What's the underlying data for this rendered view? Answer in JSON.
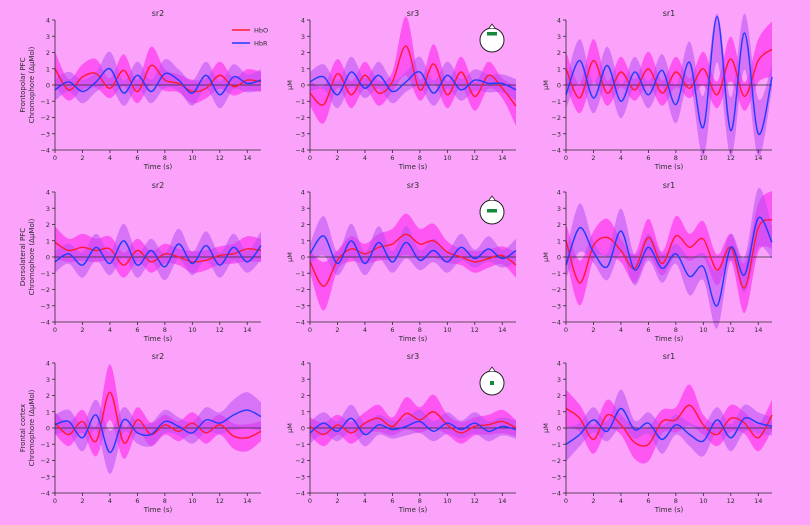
{
  "colors": {
    "background": "#fba3fb",
    "hbo": "#ff1a33",
    "hbr": "#1f3cff",
    "band_hbo": "#ff3cf0",
    "band_hbr": "#b84cf2",
    "axis": "#2b2b2b",
    "headmap": "#138a3a"
  },
  "legend": {
    "placement": "upper-right of top-left panel",
    "items": [
      "HbO",
      "HbR"
    ]
  },
  "headmap_icon": "head-montage-icon",
  "row_labels": [
    [
      "Frontopolar PFC",
      "Chromophore (ΔμMol)"
    ],
    [
      "Dorsolateral PFC",
      "Chromophore (ΔμMol)"
    ],
    [
      "Frontal cortex",
      "Chromophore (ΔμMol)"
    ]
  ],
  "xlabel": "Time (s)",
  "ylabel_right": "μM",
  "xticks": [
    0,
    2,
    4,
    6,
    8,
    10,
    12,
    14
  ],
  "yticks": [
    -4,
    -3,
    -2,
    -1,
    0,
    1,
    2,
    3,
    4
  ],
  "chart_data": [
    {
      "type": "line",
      "title": "sr2",
      "x": [
        0,
        1,
        2,
        3,
        4,
        5,
        6,
        7,
        8,
        9,
        10,
        11,
        12,
        13,
        14,
        15
      ],
      "series": [
        {
          "name": "HbO",
          "values": [
            1,
            -0.3,
            0.5,
            0.7,
            -0.2,
            0.9,
            -0.4,
            1.2,
            0.3,
            0.1,
            -0.4,
            -0.2,
            0.6,
            -0.1,
            0.3,
            0.2
          ]
        },
        {
          "name": "HbR",
          "values": [
            -0.3,
            0.2,
            -0.4,
            0.2,
            1,
            -0.5,
            0.6,
            -0.4,
            0.7,
            0.3,
            -0.5,
            0.6,
            -0.6,
            0.5,
            0.1,
            0.3
          ]
        }
      ],
      "xlim": [
        0,
        15
      ],
      "ylim": [
        -4,
        4
      ]
    },
    {
      "type": "line",
      "title": "sr3",
      "x": [
        0,
        1,
        2,
        3,
        4,
        5,
        6,
        7,
        8,
        9,
        10,
        11,
        12,
        13,
        14,
        15
      ],
      "series": [
        {
          "name": "HbO",
          "values": [
            -0.5,
            -1.2,
            0.7,
            -0.6,
            0.6,
            -0.5,
            0.2,
            2.4,
            -0.3,
            1.3,
            -0.6,
            0.8,
            -0.7,
            0.6,
            -0.2,
            -1.3
          ]
        },
        {
          "name": "HbR",
          "values": [
            0.2,
            0.5,
            -0.6,
            0.8,
            -0.2,
            0.6,
            -0.4,
            0.2,
            0.8,
            -0.5,
            0.6,
            -0.3,
            0.3,
            0.1,
            0.1,
            -0.3
          ]
        }
      ],
      "xlim": [
        0,
        15
      ],
      "ylim": [
        -4,
        4
      ]
    },
    {
      "type": "line",
      "title": "sr1",
      "x": [
        0,
        1,
        2,
        3,
        4,
        5,
        6,
        7,
        8,
        9,
        10,
        11,
        12,
        13,
        14,
        15
      ],
      "series": [
        {
          "name": "HbO",
          "values": [
            1,
            -0.8,
            1.5,
            -0.5,
            0.8,
            -0.3,
            1,
            -0.5,
            0.8,
            -0.2,
            1,
            -0.6,
            1.6,
            -0.7,
            1.5,
            2.2
          ]
        },
        {
          "name": "HbR",
          "values": [
            -0.6,
            1.5,
            -0.8,
            1.2,
            -1,
            0.8,
            -0.6,
            0.9,
            -1.2,
            1.4,
            -2.6,
            4.2,
            -2.8,
            3.2,
            -3,
            0.5
          ]
        }
      ],
      "xlim": [
        0,
        15
      ],
      "ylim": [
        -4,
        4
      ]
    },
    {
      "type": "line",
      "title": "sr2",
      "x": [
        0,
        1,
        2,
        3,
        4,
        5,
        6,
        7,
        8,
        9,
        10,
        11,
        12,
        13,
        14,
        15
      ],
      "series": [
        {
          "name": "HbO",
          "values": [
            0.9,
            0.4,
            0.6,
            0.4,
            0.5,
            -0.5,
            0.4,
            -0.3,
            0.2,
            0,
            -0.3,
            -0.2,
            0.1,
            0.2,
            0.5,
            0.4
          ]
        },
        {
          "name": "HbR",
          "values": [
            -0.3,
            0.2,
            -0.5,
            0.6,
            -0.4,
            1,
            -0.5,
            0.4,
            -0.6,
            0.8,
            -0.4,
            0.7,
            -0.5,
            0.6,
            -0.3,
            0.7
          ]
        }
      ],
      "xlim": [
        0,
        15
      ],
      "ylim": [
        -4,
        4
      ]
    },
    {
      "type": "line",
      "title": "sr3",
      "x": [
        0,
        1,
        2,
        3,
        4,
        5,
        6,
        7,
        8,
        9,
        10,
        11,
        12,
        13,
        14,
        15
      ],
      "series": [
        {
          "name": "HbO",
          "values": [
            -0.3,
            -1.8,
            -0.2,
            0.5,
            0.2,
            0.6,
            0.8,
            1.4,
            0.8,
            1,
            0.3,
            0,
            -0.3,
            -0.1,
            0.1,
            -0.5
          ]
        },
        {
          "name": "HbR",
          "values": [
            0.2,
            1.3,
            -0.4,
            1,
            -0.4,
            0.9,
            -0.3,
            0.9,
            -0.2,
            0.4,
            -0.3,
            0.6,
            -0.1,
            0.5,
            -0.1,
            0.4
          ]
        }
      ],
      "xlim": [
        0,
        15
      ],
      "ylim": [
        -4,
        4
      ]
    },
    {
      "type": "line",
      "title": "sr1",
      "x": [
        0,
        1,
        2,
        3,
        4,
        5,
        6,
        7,
        8,
        9,
        10,
        11,
        12,
        13,
        14,
        15
      ],
      "series": [
        {
          "name": "HbO",
          "values": [
            1,
            -1.6,
            0.7,
            1.2,
            0.4,
            -0.7,
            1.2,
            -0.4,
            1.3,
            0.6,
            1.1,
            -0.8,
            0.6,
            -1.9,
            1.8,
            2.3
          ]
        },
        {
          "name": "HbR",
          "values": [
            -0.5,
            1.8,
            0.3,
            -0.6,
            1.6,
            -0.8,
            0.6,
            -0.7,
            0.2,
            -1.2,
            -0.6,
            -3,
            0.6,
            -1.1,
            2.4,
            0.9
          ]
        }
      ],
      "xlim": [
        0,
        15
      ],
      "ylim": [
        -4,
        4
      ]
    },
    {
      "type": "line",
      "title": "sr2",
      "x": [
        0,
        1,
        2,
        3,
        4,
        5,
        6,
        7,
        8,
        9,
        10,
        11,
        12,
        13,
        14,
        15
      ],
      "series": [
        {
          "name": "HbO",
          "values": [
            0.3,
            -0.4,
            0.4,
            -0.8,
            2.2,
            -0.9,
            0.5,
            -0.4,
            0.2,
            -0.2,
            0.3,
            -0.3,
            0.2,
            -0.5,
            -0.6,
            -0.2
          ]
        },
        {
          "name": "HbR",
          "values": [
            0.2,
            0.4,
            -0.6,
            0.8,
            -1.5,
            0.5,
            -0.3,
            -0.4,
            0.4,
            0.1,
            -0.3,
            0.5,
            0.3,
            0.8,
            1.1,
            0.7
          ]
        }
      ],
      "xlim": [
        0,
        15
      ],
      "ylim": [
        -4,
        4
      ]
    },
    {
      "type": "line",
      "title": "sr3",
      "x": [
        0,
        1,
        2,
        3,
        4,
        5,
        6,
        7,
        8,
        9,
        10,
        11,
        12,
        13,
        14,
        15
      ],
      "series": [
        {
          "name": "HbO",
          "values": [
            0.1,
            -0.4,
            0.2,
            -0.3,
            0.3,
            0.6,
            0.1,
            0.9,
            0.5,
            1,
            0.2,
            -0.3,
            0.1,
            0.2,
            0.4,
            0
          ]
        },
        {
          "name": "HbR",
          "values": [
            -0.3,
            0.3,
            -0.2,
            0.6,
            -0.4,
            0.2,
            -0.1,
            0.1,
            0.4,
            -0.2,
            0.3,
            -0.1,
            0.3,
            -0.2,
            0.1,
            -0.1
          ]
        }
      ],
      "xlim": [
        0,
        15
      ],
      "ylim": [
        -4,
        4
      ]
    },
    {
      "type": "line",
      "title": "sr1",
      "x": [
        0,
        1,
        2,
        3,
        4,
        5,
        6,
        7,
        8,
        9,
        10,
        11,
        12,
        13,
        14,
        15
      ],
      "series": [
        {
          "name": "HbO",
          "values": [
            1.2,
            0.6,
            -0.7,
            0.8,
            0.2,
            -0.9,
            -1,
            0.4,
            0.5,
            1.4,
            0.2,
            -0.4,
            0.6,
            0.3,
            -0.6,
            0.8
          ]
        },
        {
          "name": "HbR",
          "values": [
            -1,
            -0.4,
            0.5,
            -0.2,
            1.2,
            -0.1,
            0.3,
            -0.7,
            0.2,
            -0.4,
            -0.8,
            0.5,
            -0.6,
            0.6,
            0.3,
            0.1
          ]
        }
      ],
      "xlim": [
        0,
        15
      ],
      "ylim": [
        -4,
        4
      ]
    }
  ]
}
